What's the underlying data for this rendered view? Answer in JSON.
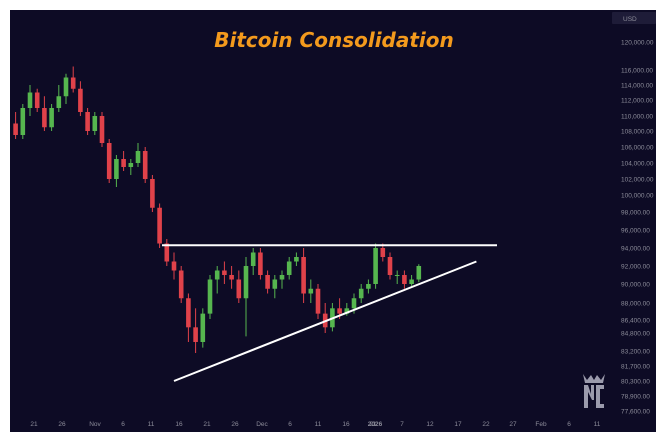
{
  "chart_data": {
    "type": "candlestick",
    "title": "Bitcoin Consolidation",
    "currency": "USD",
    "y_ticks": [
      120000,
      116000,
      114000,
      112000,
      110000,
      108000,
      106000,
      104000,
      102000,
      100000,
      98000,
      96000,
      94000,
      92000,
      90000,
      88000,
      86400,
      84800,
      83200,
      81700,
      80300,
      78900,
      77600
    ],
    "y_tick_labels": [
      "120,000.00",
      "116,000.00",
      "114,000.00",
      "112,000.00",
      "110,000.00",
      "108,000.00",
      "106,000.00",
      "104,000.00",
      "102,000.00",
      "100,000.00",
      "98,000.00",
      "96,000.00",
      "94,000.00",
      "92,000.00",
      "90,000.00",
      "88,000.00",
      "86,400.00",
      "84,800.00",
      "83,200.00",
      "81,700.00",
      "80,300.00",
      "78,900.00",
      "77,600.00"
    ],
    "x_tick_labels": [
      "21",
      "26",
      "Nov",
      "6",
      "11",
      "16",
      "21",
      "26",
      "Dec",
      "6",
      "11",
      "16",
      "21",
      "2026",
      "7",
      "12",
      "17",
      "22",
      "27",
      "Feb",
      "6",
      "11"
    ],
    "bullish_color": "#56b64f",
    "bearish_color": "#e0424a",
    "line_color": "#ffffff",
    "background_color": "#0d0b25",
    "candles": [
      {
        "o": 109000,
        "h": 110500,
        "l": 107000,
        "c": 107500
      },
      {
        "o": 107500,
        "h": 111500,
        "l": 107000,
        "c": 111000
      },
      {
        "o": 111000,
        "h": 114000,
        "l": 110000,
        "c": 113000
      },
      {
        "o": 113000,
        "h": 113500,
        "l": 110500,
        "c": 111000
      },
      {
        "o": 111000,
        "h": 112500,
        "l": 108000,
        "c": 108500
      },
      {
        "o": 108500,
        "h": 111500,
        "l": 108000,
        "c": 111000
      },
      {
        "o": 111000,
        "h": 114000,
        "l": 110500,
        "c": 112500
      },
      {
        "o": 112500,
        "h": 115500,
        "l": 111500,
        "c": 115000
      },
      {
        "o": 115000,
        "h": 116500,
        "l": 113000,
        "c": 113500
      },
      {
        "o": 113500,
        "h": 114500,
        "l": 110000,
        "c": 110500
      },
      {
        "o": 110500,
        "h": 111000,
        "l": 107500,
        "c": 108000
      },
      {
        "o": 108000,
        "h": 110500,
        "l": 107500,
        "c": 110000
      },
      {
        "o": 110000,
        "h": 110500,
        "l": 106000,
        "c": 106500
      },
      {
        "o": 106500,
        "h": 107000,
        "l": 101500,
        "c": 102000
      },
      {
        "o": 102000,
        "h": 105000,
        "l": 101000,
        "c": 104500
      },
      {
        "o": 104500,
        "h": 105500,
        "l": 103000,
        "c": 103500
      },
      {
        "o": 103500,
        "h": 104500,
        "l": 102500,
        "c": 104000
      },
      {
        "o": 104000,
        "h": 106500,
        "l": 103500,
        "c": 105500
      },
      {
        "o": 105500,
        "h": 106000,
        "l": 101500,
        "c": 102000
      },
      {
        "o": 102000,
        "h": 102500,
        "l": 98000,
        "c": 98500
      },
      {
        "o": 98500,
        "h": 99000,
        "l": 94000,
        "c": 94500
      },
      {
        "o": 94500,
        "h": 95000,
        "l": 92000,
        "c": 92500
      },
      {
        "o": 92500,
        "h": 93500,
        "l": 90500,
        "c": 91500
      },
      {
        "o": 91500,
        "h": 92000,
        "l": 88000,
        "c": 88500
      },
      {
        "o": 88500,
        "h": 89000,
        "l": 84000,
        "c": 85500
      },
      {
        "o": 85500,
        "h": 87500,
        "l": 83000,
        "c": 84000
      },
      {
        "o": 84000,
        "h": 87500,
        "l": 83500,
        "c": 87000
      },
      {
        "o": 87000,
        "h": 91000,
        "l": 86500,
        "c": 90500
      },
      {
        "o": 90500,
        "h": 92000,
        "l": 89000,
        "c": 91500
      },
      {
        "o": 91500,
        "h": 92500,
        "l": 90000,
        "c": 91000
      },
      {
        "o": 91000,
        "h": 92000,
        "l": 89500,
        "c": 90500
      },
      {
        "o": 90500,
        "h": 91500,
        "l": 88000,
        "c": 88500
      },
      {
        "o": 88500,
        "h": 93000,
        "l": 84500,
        "c": 92000
      },
      {
        "o": 92000,
        "h": 94000,
        "l": 91000,
        "c": 93500
      },
      {
        "o": 93500,
        "h": 94000,
        "l": 90500,
        "c": 91000
      },
      {
        "o": 91000,
        "h": 91500,
        "l": 89000,
        "c": 89500
      },
      {
        "o": 89500,
        "h": 91000,
        "l": 88500,
        "c": 90500
      },
      {
        "o": 90500,
        "h": 91500,
        "l": 89500,
        "c": 91000
      },
      {
        "o": 91000,
        "h": 93000,
        "l": 90500,
        "c": 92500
      },
      {
        "o": 92500,
        "h": 93500,
        "l": 92000,
        "c": 93000
      },
      {
        "o": 93000,
        "h": 94000,
        "l": 88000,
        "c": 89000
      },
      {
        "o": 89000,
        "h": 90500,
        "l": 88000,
        "c": 89500
      },
      {
        "o": 89500,
        "h": 90000,
        "l": 86500,
        "c": 87000
      },
      {
        "o": 87000,
        "h": 88000,
        "l": 84800,
        "c": 85500
      },
      {
        "o": 85500,
        "h": 88000,
        "l": 85000,
        "c": 87500
      },
      {
        "o": 87500,
        "h": 88500,
        "l": 86500,
        "c": 87000
      },
      {
        "o": 87000,
        "h": 88000,
        "l": 86800,
        "c": 87500
      },
      {
        "o": 87500,
        "h": 89000,
        "l": 87000,
        "c": 88500
      },
      {
        "o": 88500,
        "h": 90000,
        "l": 88000,
        "c": 89500
      },
      {
        "o": 89500,
        "h": 90500,
        "l": 89000,
        "c": 90000
      },
      {
        "o": 90000,
        "h": 94500,
        "l": 89500,
        "c": 94000
      },
      {
        "o": 94000,
        "h": 94500,
        "l": 92500,
        "c": 93000
      },
      {
        "o": 93000,
        "h": 93500,
        "l": 90500,
        "c": 91000
      },
      {
        "o": 91000,
        "h": 91500,
        "l": 90000,
        "c": 91000
      },
      {
        "o": 91000,
        "h": 91500,
        "l": 89500,
        "c": 90000
      },
      {
        "o": 90000,
        "h": 91000,
        "l": 89800,
        "c": 90500
      },
      {
        "o": 90500,
        "h": 92200,
        "l": 90200,
        "c": 92000
      }
    ],
    "resistance_level": 94300,
    "support_line": [
      {
        "candle": 22,
        "price": 80300
      },
      {
        "candle": 64,
        "price": 92500
      }
    ]
  }
}
